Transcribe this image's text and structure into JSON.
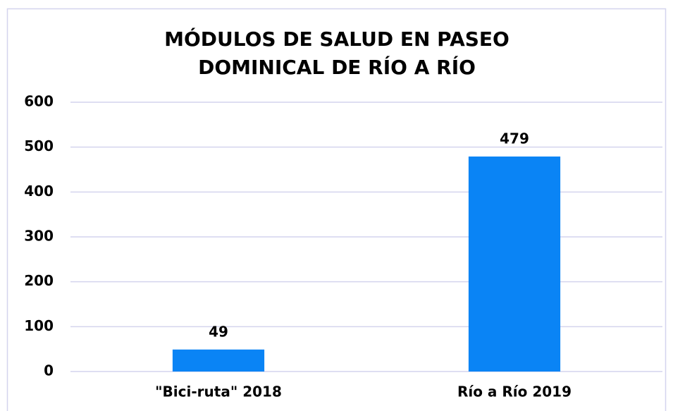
{
  "chart_data": {
    "type": "bar",
    "title": [
      "MÓDULOS DE SALUD EN PASEO",
      "DOMINICAL DE RÍO A RÍO"
    ],
    "categories": [
      "\"Bici-ruta\" 2018",
      "Río a Río 2019"
    ],
    "values": [
      49,
      479
    ],
    "color": "#0a84f5",
    "ylim": [
      0,
      600
    ],
    "yticks": [
      0,
      100,
      200,
      300,
      400,
      500,
      600
    ],
    "grid": true
  }
}
